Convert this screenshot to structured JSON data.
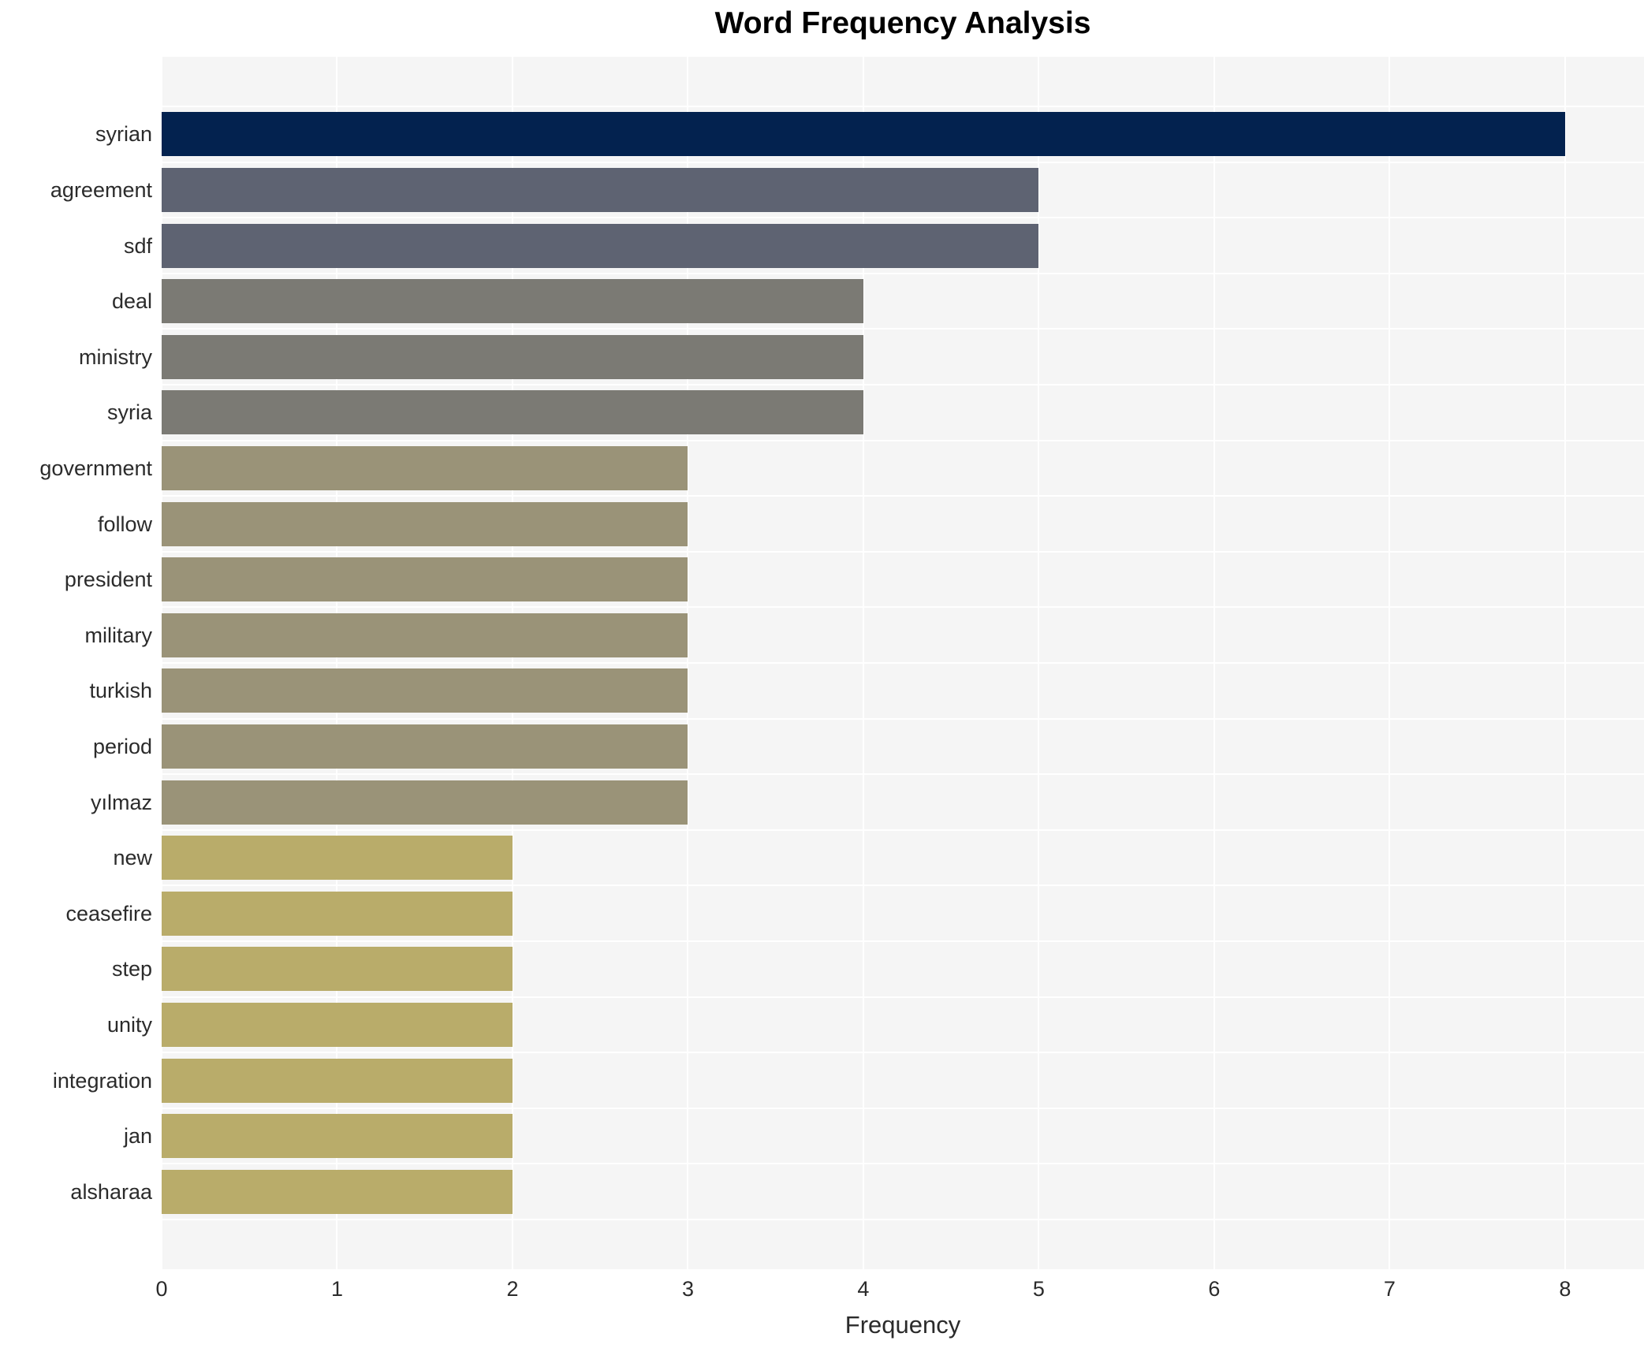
{
  "chart_data": {
    "type": "bar",
    "orientation": "horizontal",
    "title": "Word Frequency Analysis",
    "xlabel": "Frequency",
    "ylabel": "",
    "categories": [
      "syrian",
      "agreement",
      "sdf",
      "deal",
      "ministry",
      "syria",
      "government",
      "follow",
      "president",
      "military",
      "turkish",
      "period",
      "yılmaz",
      "new",
      "ceasefire",
      "step",
      "unity",
      "integration",
      "jan",
      "alsharaa"
    ],
    "values": [
      8,
      5,
      5,
      4,
      4,
      4,
      3,
      3,
      3,
      3,
      3,
      3,
      3,
      2,
      2,
      2,
      2,
      2,
      2,
      2
    ],
    "xticks": [
      0,
      1,
      2,
      3,
      4,
      5,
      6,
      7,
      8
    ],
    "xlim": [
      0,
      8.45
    ],
    "grid": true,
    "legend": "none",
    "colors_by_value": {
      "8": "#03224f",
      "5": "#5e6372",
      "4": "#7b7a74",
      "3": "#9a9378",
      "2": "#b9ac6a"
    },
    "plot_background": "#f5f5f5",
    "grid_color": "#ffffff",
    "text_color": "#2b2b2b"
  }
}
